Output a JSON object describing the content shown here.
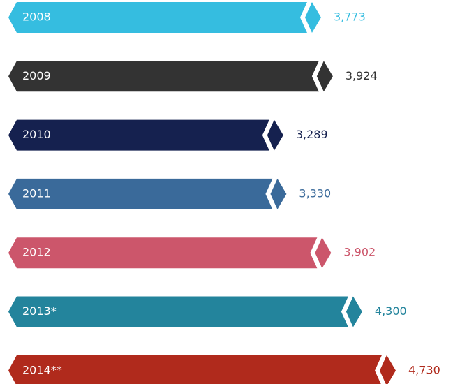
{
  "chart_data": {
    "type": "bar",
    "categories": [
      "2008",
      "2009",
      "2010",
      "2011",
      "2012",
      "2013*",
      "2014**"
    ],
    "values": [
      3773,
      3924,
      3289,
      3330,
      3902,
      4300,
      4730
    ],
    "value_labels": [
      "3,773",
      "3,924",
      "3,289",
      "3,330",
      "3,902",
      "4,300",
      "4,730"
    ],
    "colors": [
      "#35bde0",
      "#333333",
      "#15214f",
      "#3a6a9a",
      "#cc566b",
      "#23849c",
      "#b02a1c"
    ]
  }
}
